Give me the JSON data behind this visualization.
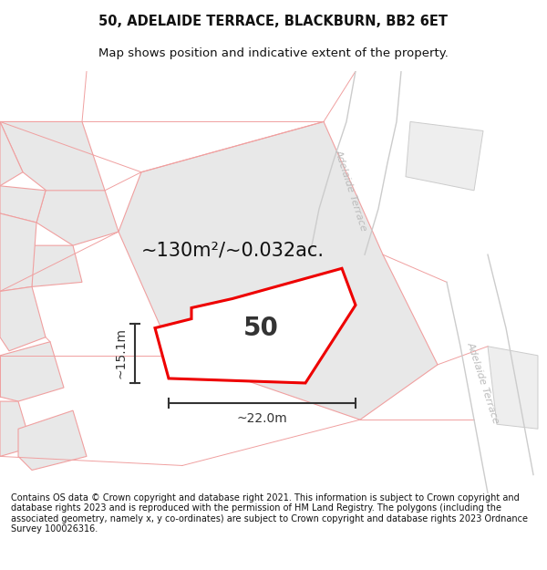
{
  "title_line1": "50, ADELAIDE TERRACE, BLACKBURN, BB2 6ET",
  "title_line2": "Map shows position and indicative extent of the property.",
  "footer_text": "Contains OS data © Crown copyright and database right 2021. This information is subject to Crown copyright and database rights 2023 and is reproduced with the permission of HM Land Registry. The polygons (including the associated geometry, namely x, y co-ordinates) are subject to Crown copyright and database rights 2023 Ordnance Survey 100026316.",
  "bg_color": "#ffffff",
  "plot_area_color": "#e8e8e8",
  "road_edge_color": "#f0a0a0",
  "highlight_color": "#ee0000",
  "highlight_fill": "#ffffff",
  "dim_color": "#333333",
  "street_label_color": "#bbbbbb",
  "area_label": "~130m²/~0.032ac.",
  "number_label": "50",
  "dim_width": "~22.0m",
  "dim_height": "~15.1m",
  "title_fontsize": 10.5,
  "subtitle_fontsize": 9.5,
  "footer_fontsize": 7.0,
  "area_label_fontsize": 15,
  "number_fontsize": 20,
  "dim_fontsize": 10
}
